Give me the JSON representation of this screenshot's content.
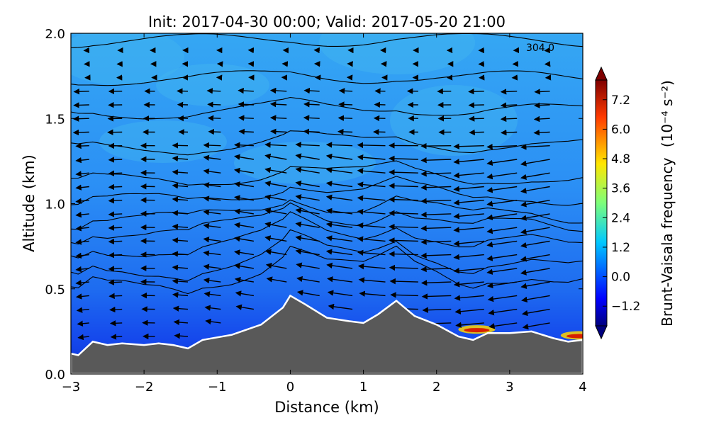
{
  "chart_data": {
    "type": "heatmap",
    "title": "Init: 2017-04-30 00:00; Valid: 2017-05-20 21:00",
    "xlabel": "Distance (km)",
    "ylabel": "Altitude (km)",
    "xlim": [
      -3,
      4
    ],
    "ylim": [
      0.0,
      2.0
    ],
    "xticks": [
      "−3",
      "−2",
      "−1",
      "0",
      "1",
      "2",
      "3",
      "4"
    ],
    "yticks": [
      "0.0",
      "0.5",
      "1.0",
      "1.5",
      "2.0"
    ],
    "colorbar": {
      "label": "Brunt-Vaisala frequency",
      "units": "(10⁻⁴ s⁻²)",
      "ticks": [
        "−1.2",
        "0.0",
        "1.2",
        "2.4",
        "3.6",
        "4.8",
        "6.0",
        "7.2"
      ],
      "range": [
        -2.0,
        8.0
      ],
      "extend": "both"
    },
    "contour_label": "304.0",
    "colors": {
      "background_field": "#1e6cf0",
      "upper_field": "#2b8ff5",
      "terrain": "#595959",
      "terrain_outline": "#ffffff"
    },
    "terrain_profile": {
      "x": [
        -3.0,
        -2.9,
        -2.7,
        -2.5,
        -2.3,
        -2.0,
        -1.8,
        -1.6,
        -1.4,
        -1.2,
        -0.8,
        -0.4,
        -0.1,
        0.0,
        0.2,
        0.5,
        0.8,
        1.0,
        1.2,
        1.45,
        1.7,
        2.0,
        2.3,
        2.5,
        2.7,
        3.0,
        3.3,
        3.6,
        3.8,
        4.0
      ],
      "y": [
        0.12,
        0.11,
        0.19,
        0.17,
        0.18,
        0.17,
        0.18,
        0.17,
        0.15,
        0.2,
        0.23,
        0.29,
        0.39,
        0.46,
        0.41,
        0.33,
        0.31,
        0.3,
        0.35,
        0.43,
        0.34,
        0.29,
        0.22,
        0.2,
        0.24,
        0.24,
        0.25,
        0.21,
        0.19,
        0.2
      ]
    },
    "hot_spots": [
      {
        "x": 2.55,
        "y": 0.245,
        "value": 7.0
      },
      {
        "x": 3.95,
        "y": 0.21,
        "value": 7.0
      }
    ]
  }
}
